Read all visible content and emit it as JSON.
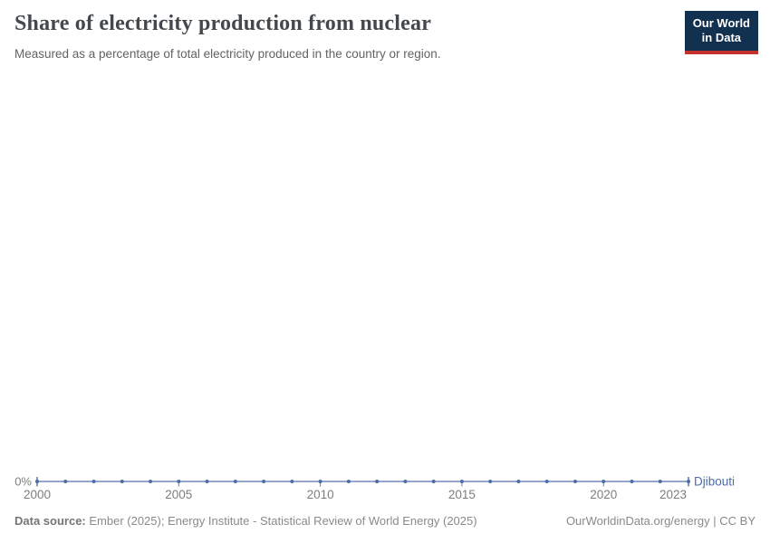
{
  "header": {
    "title": "Share of electricity production from nuclear",
    "subtitle": "Measured as a percentage of total electricity produced in the country or region."
  },
  "logo": {
    "line1": "Our World",
    "line2": "in Data",
    "bg_color": "#12304f",
    "stripe_color": "#c5312b"
  },
  "chart_data": {
    "type": "line",
    "title": "Share of electricity production from nuclear",
    "subtitle": "Measured as a percentage of total electricity produced in the country or region.",
    "x": [
      2000,
      2001,
      2002,
      2003,
      2004,
      2005,
      2006,
      2007,
      2008,
      2009,
      2010,
      2011,
      2012,
      2013,
      2014,
      2015,
      2016,
      2017,
      2018,
      2019,
      2020,
      2021,
      2022,
      2023
    ],
    "series": [
      {
        "name": "Djibouti",
        "color": "#4C6BA8",
        "values": [
          0,
          0,
          0,
          0,
          0,
          0,
          0,
          0,
          0,
          0,
          0,
          0,
          0,
          0,
          0,
          0,
          0,
          0,
          0,
          0,
          0,
          0,
          0,
          0
        ]
      }
    ],
    "x_ticks": [
      2000,
      2005,
      2010,
      2015,
      2020,
      2023
    ],
    "y_axis": {
      "tick_label": "0%",
      "min": 0
    },
    "grid": false,
    "legend_position": "end-of-line-label",
    "axis_text_color": "#7d7d7d",
    "xlabel": "",
    "ylabel": ""
  },
  "footer": {
    "source_label": "Data source:",
    "source_text": " Ember (2025); Energy Institute - Statistical Review of World Energy (2025)",
    "right_text": "OurWorldinData.org/energy | CC BY"
  }
}
